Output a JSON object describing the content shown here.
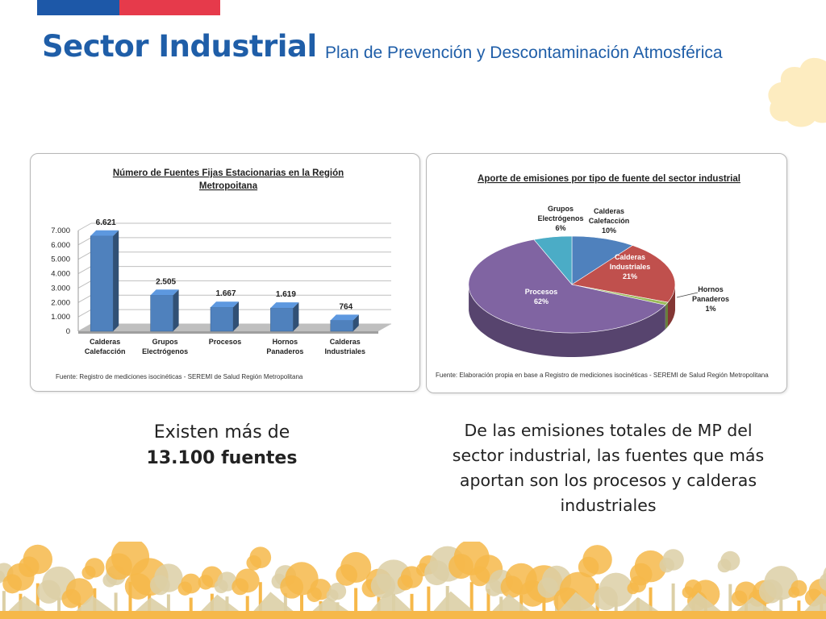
{
  "header": {
    "title": "Sector Industrial",
    "subtitle": "Plan de Prevención y Descontaminación Atmosférica"
  },
  "colors": {
    "title": "#1f5ea8",
    "flag_blue": "#1d58a8",
    "flag_red": "#e63a4b",
    "bar": "#4f81bd",
    "bar_floor": "#bfbfbf",
    "cloud": "#fdecc0",
    "forest": [
      "#f6b84a",
      "#dccfa6"
    ]
  },
  "chart_data": [
    {
      "type": "bar",
      "title": "Número de Fuentes Fijas Estacionarias  en la Región",
      "title_line2": "Metropoitana",
      "categories": [
        [
          "Calderas",
          "Calefacción"
        ],
        [
          "Grupos",
          "Electrógenos"
        ],
        [
          "Procesos"
        ],
        [
          "Hornos",
          "Panaderos"
        ],
        [
          "Calderas",
          "Industriales"
        ]
      ],
      "values": [
        6621,
        2505,
        1667,
        1619,
        764
      ],
      "data_labels": [
        "6.621",
        "2.505",
        "1.667",
        "1.619",
        "764"
      ],
      "yticks": [
        "0",
        "1.000",
        "2.000",
        "3.000",
        "4.000",
        "5.000",
        "6.000",
        "7.000"
      ],
      "ylim": [
        0,
        7000
      ],
      "grid": true,
      "source": "Fuente: Registro de mediciones isocinéticas - SEREMI de Salud Región Metropolitana"
    },
    {
      "type": "pie",
      "title": "Aporte de emisiones por tipo de fuente del sector industrial",
      "slices": [
        {
          "label": [
            "Calderas",
            "Calefacción",
            "10%"
          ],
          "value": 10,
          "color": "#4f81bd"
        },
        {
          "label": [
            "Calderas",
            "Industriales",
            "21%"
          ],
          "value": 21,
          "color": "#c0504d"
        },
        {
          "label": [
            "Hornos",
            "Panaderos",
            "1%"
          ],
          "value": 1,
          "color": "#9bbb59"
        },
        {
          "label": [
            "Procesos",
            "62%"
          ],
          "value": 62,
          "color": "#8064a2"
        },
        {
          "label": [
            "Grupos",
            "Electrógenos",
            "6%"
          ],
          "value": 6,
          "color": "#4bacc6"
        }
      ],
      "source": "Fuente: Elaboración  propia en base a Registro de mediciones isocinéticas - SEREMI de Salud Región Metropolitana"
    }
  ],
  "captions": {
    "left_line1": "Existen más de",
    "left_line2": "13.100 fuentes",
    "right": "De las emisiones totales de MP del sector industrial, las fuentes que más aportan son los procesos y calderas industriales"
  }
}
